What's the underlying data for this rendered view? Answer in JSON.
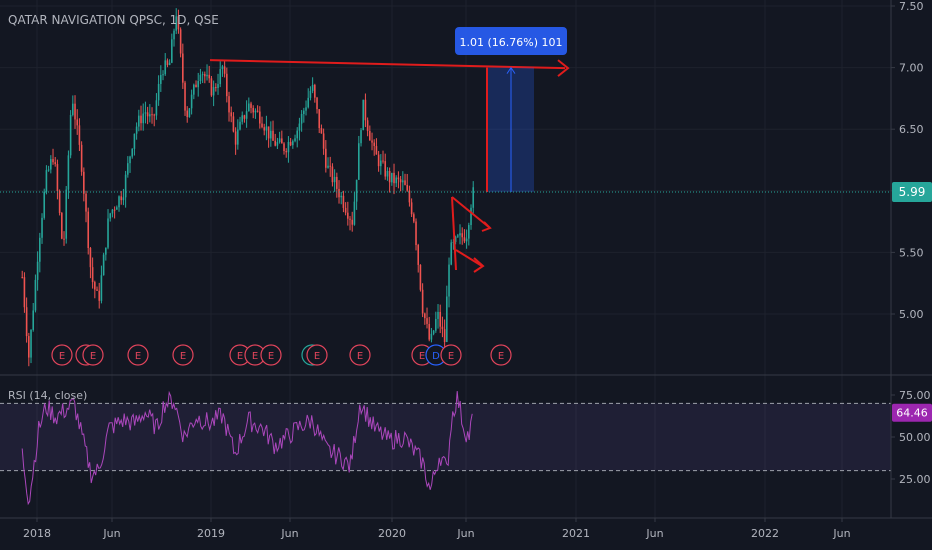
{
  "chart_data": {
    "type": "candlestick",
    "title": "QATAR NAVIGATION QPSC, 1D, QSE",
    "x_axis": {
      "ticks": [
        "2018",
        "Jun",
        "2019",
        "Jun",
        "2020",
        "Jun",
        "2021",
        "Jun",
        "2022",
        "Jun"
      ]
    },
    "price_axis": {
      "ticks": [
        "7.50",
        "7.00",
        "6.50",
        "6.00",
        "5.50",
        "5.00"
      ],
      "last_price": "5.99",
      "ylim": [
        4.6,
        7.55
      ]
    },
    "price_path": [
      [
        "2017-12-01",
        5.3
      ],
      [
        "2017-12-15",
        4.65
      ],
      [
        "2018-01-05",
        5.6
      ],
      [
        "2018-01-20",
        6.1
      ],
      [
        "2018-02-05",
        6.3
      ],
      [
        "2018-02-25",
        5.5
      ],
      [
        "2018-03-15",
        6.8
      ],
      [
        "2018-04-05",
        6.2
      ],
      [
        "2018-04-25",
        5.3
      ],
      [
        "2018-05-10",
        5.1
      ],
      [
        "2018-06-01",
        5.8
      ],
      [
        "2018-07-01",
        6.0
      ],
      [
        "2018-07-25",
        6.5
      ],
      [
        "2018-08-15",
        6.65
      ],
      [
        "2018-09-01",
        6.55
      ],
      [
        "2018-09-20",
        7.0
      ],
      [
        "2018-10-05",
        7.0
      ],
      [
        "2018-10-20",
        7.45
      ],
      [
        "2018-11-10",
        6.6
      ],
      [
        "2018-12-10",
        7.0
      ],
      [
        "2019-01-05",
        6.8
      ],
      [
        "2019-01-25",
        7.0
      ],
      [
        "2019-02-20",
        6.4
      ],
      [
        "2019-03-20",
        6.7
      ],
      [
        "2019-04-15",
        6.6
      ],
      [
        "2019-05-10",
        6.4
      ],
      [
        "2019-06-05",
        6.35
      ],
      [
        "2019-07-01",
        6.5
      ],
      [
        "2019-08-01",
        6.85
      ],
      [
        "2019-09-01",
        6.2
      ],
      [
        "2019-10-01",
        5.95
      ],
      [
        "2019-10-25",
        5.75
      ],
      [
        "2019-11-15",
        6.7
      ],
      [
        "2019-12-10",
        6.3
      ],
      [
        "2020-01-10",
        6.1
      ],
      [
        "2020-02-10",
        6.05
      ],
      [
        "2020-03-01",
        5.8
      ],
      [
        "2020-03-20",
        5.05
      ],
      [
        "2020-04-05",
        4.75
      ],
      [
        "2020-04-20",
        5.0
      ],
      [
        "2020-05-05",
        4.78
      ],
      [
        "2020-05-15",
        5.5
      ],
      [
        "2020-06-01",
        5.6
      ],
      [
        "2020-06-20",
        5.65
      ],
      [
        "2020-07-01",
        5.95
      ],
      [
        "2020-07-05",
        5.99
      ]
    ],
    "earnings_labels": [
      "E",
      "E",
      "E",
      "E",
      "E",
      "E",
      "S",
      "E",
      "E",
      "E",
      "E",
      "E",
      "E"
    ],
    "annotations": {
      "resistance_line": 7.02,
      "measure_label": "1.01 (16.76%) 101",
      "measure_from": 5.99,
      "measure_to": 7.0
    },
    "rsi": {
      "label": "RSI (14, close)",
      "value_label": "64.46",
      "ticks": [
        "75.00",
        "50.00",
        "25.00"
      ],
      "bands": [
        30,
        70
      ],
      "ylim": [
        10,
        80
      ],
      "path": [
        [
          "2017-12-01",
          40
        ],
        [
          "2017-12-15",
          12
        ],
        [
          "2018-01-05",
          55
        ],
        [
          "2018-01-20",
          68
        ],
        [
          "2018-02-10",
          62
        ],
        [
          "2018-03-01",
          66
        ],
        [
          "2018-03-20",
          70
        ],
        [
          "2018-04-10",
          45
        ],
        [
          "2018-04-25",
          28
        ],
        [
          "2018-05-10",
          30
        ],
        [
          "2018-06-01",
          55
        ],
        [
          "2018-07-01",
          60
        ],
        [
          "2018-07-25",
          58
        ],
        [
          "2018-08-15",
          65
        ],
        [
          "2018-09-10",
          55
        ],
        [
          "2018-09-25",
          70
        ],
        [
          "2018-10-15",
          72
        ],
        [
          "2018-11-05",
          50
        ],
        [
          "2018-12-01",
          62
        ],
        [
          "2019-01-01",
          58
        ],
        [
          "2019-01-25",
          63
        ],
        [
          "2019-02-20",
          40
        ],
        [
          "2019-03-20",
          60
        ],
        [
          "2019-04-20",
          55
        ],
        [
          "2019-05-15",
          45
        ],
        [
          "2019-06-10",
          50
        ],
        [
          "2019-07-05",
          56
        ],
        [
          "2019-08-01",
          60
        ],
        [
          "2019-09-01",
          42
        ],
        [
          "2019-10-01",
          38
        ],
        [
          "2019-10-20",
          32
        ],
        [
          "2019-11-10",
          71
        ],
        [
          "2019-12-10",
          55
        ],
        [
          "2020-01-10",
          48
        ],
        [
          "2020-02-10",
          50
        ],
        [
          "2020-03-01",
          42
        ],
        [
          "2020-03-20",
          35
        ],
        [
          "2020-04-05",
          18
        ],
        [
          "2020-04-25",
          40
        ],
        [
          "2020-05-10",
          30
        ],
        [
          "2020-05-20",
          62
        ],
        [
          "2020-06-01",
          74
        ],
        [
          "2020-06-15",
          55
        ],
        [
          "2020-06-25",
          50
        ],
        [
          "2020-07-05",
          64.46
        ]
      ]
    }
  }
}
